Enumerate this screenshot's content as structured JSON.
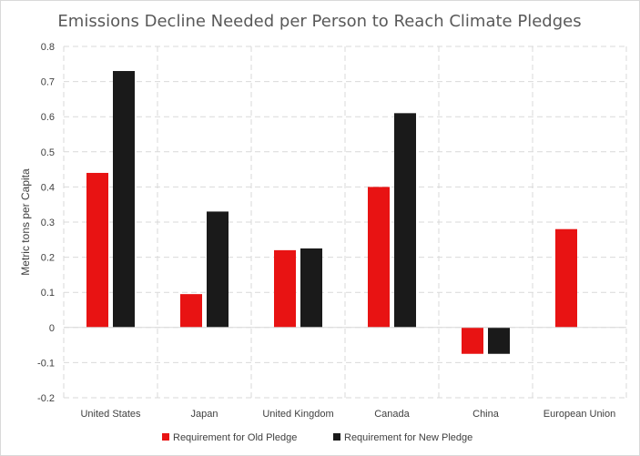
{
  "chart_data": {
    "type": "bar",
    "title": "Emissions Decline Needed per Person to Reach Climate Pledges",
    "xlabel": "",
    "ylabel": "Metric tons per Capita",
    "categories": [
      "United States",
      "Japan",
      "United Kingdom",
      "Canada",
      "China",
      "European Union"
    ],
    "series": [
      {
        "name": "Requirement for Old Pledge",
        "color": "#e81313",
        "values": [
          0.44,
          0.095,
          0.22,
          0.4,
          -0.075,
          0.28
        ]
      },
      {
        "name": "Requirement for New Pledge",
        "color": "#1a1a1a",
        "values": [
          0.73,
          0.33,
          0.225,
          0.61,
          -0.075,
          null
        ]
      }
    ],
    "ylim": [
      -0.2,
      0.8
    ],
    "yticks": [
      "-0.2",
      "-0.1",
      "0",
      "0.1",
      "0.2",
      "0.3",
      "0.4",
      "0.5",
      "0.6",
      "0.7",
      "0.8"
    ],
    "grid": true,
    "legend_position": "bottom"
  }
}
